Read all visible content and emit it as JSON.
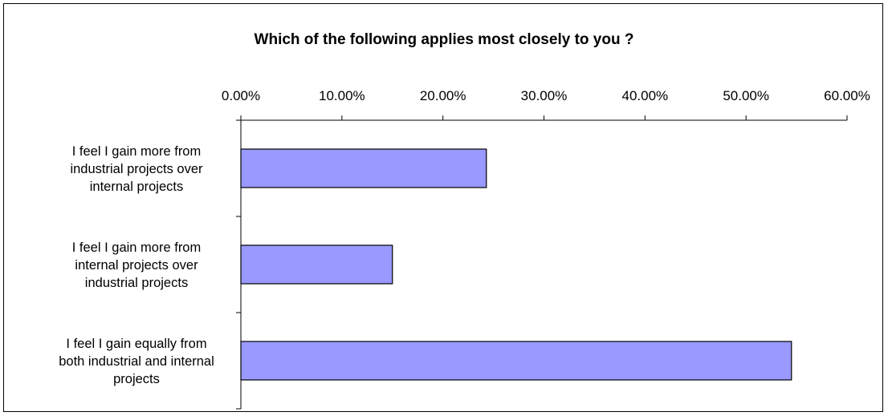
{
  "chart_data": {
    "type": "bar",
    "orientation": "horizontal",
    "title": "Which of the following applies most closely to you ?",
    "xlabel": "",
    "ylabel": "",
    "x_axis_position": "top",
    "xlim": [
      0,
      60
    ],
    "x_ticks": [
      0,
      10,
      20,
      30,
      40,
      50,
      60
    ],
    "x_tick_labels": [
      "0.00%",
      "10.00%",
      "20.00%",
      "30.00%",
      "40.00%",
      "50.00%",
      "60.00%"
    ],
    "grid": false,
    "legend": "none",
    "bar_color": "#9999FF",
    "bar_edge_color": "#000000",
    "categories": [
      [
        "I feel I gain more from",
        "industrial projects over",
        "internal projects"
      ],
      [
        "I feel I gain more from",
        "internal projects over",
        "industrial projects"
      ],
      [
        "I feel I gain equally from",
        "both industrial and internal",
        "projects"
      ]
    ],
    "values": [
      24.3,
      15.0,
      54.5
    ]
  }
}
